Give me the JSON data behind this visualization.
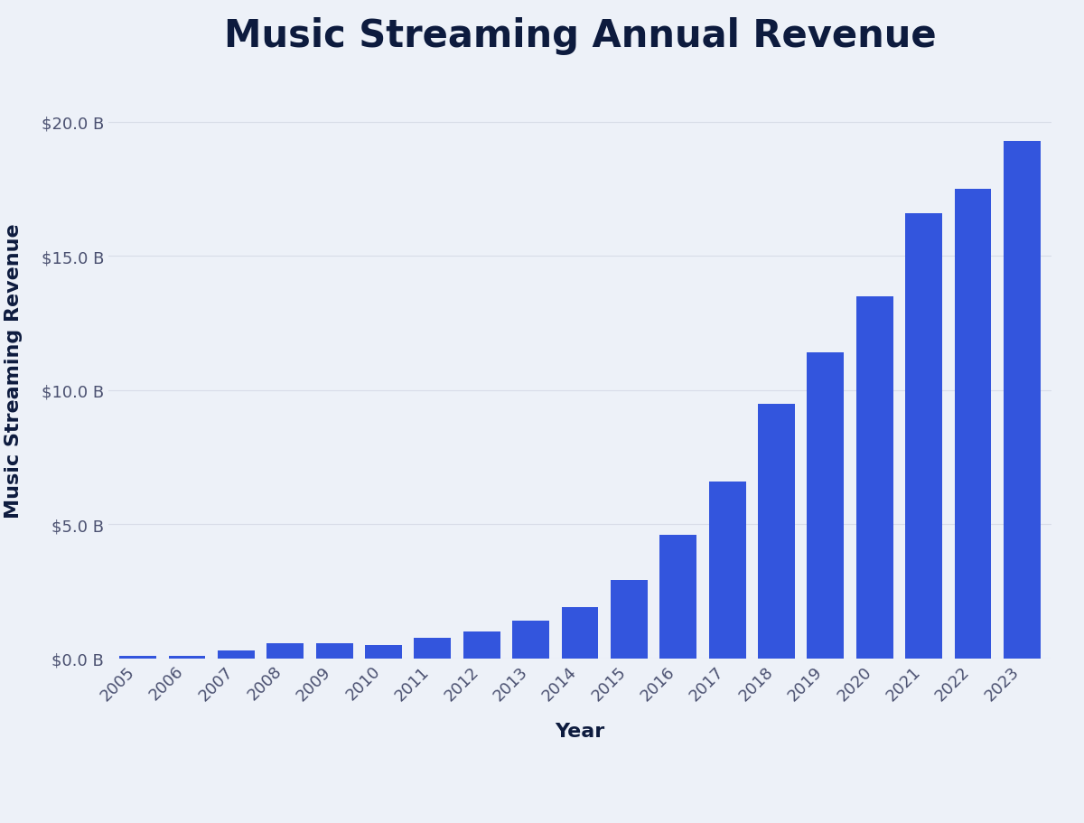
{
  "title": "Music Streaming Annual Revenue",
  "xlabel": "Year",
  "ylabel": "Music Streaming Revenue",
  "background_color": "#EDF1F8",
  "bar_color": "#3355DD",
  "title_color": "#0D1B3E",
  "axis_label_color": "#0D1B3E",
  "tick_label_color": "#4A5070",
  "grid_color": "#D8DDE8",
  "years": [
    2005,
    2006,
    2007,
    2008,
    2009,
    2010,
    2011,
    2012,
    2013,
    2014,
    2015,
    2016,
    2017,
    2018,
    2019,
    2020,
    2021,
    2022,
    2023
  ],
  "values": [
    0.08,
    0.1,
    0.3,
    0.55,
    0.55,
    0.5,
    0.75,
    1.0,
    1.4,
    1.9,
    2.9,
    4.6,
    6.6,
    9.5,
    11.4,
    13.5,
    16.6,
    17.5,
    19.3
  ],
  "yticks": [
    0,
    5,
    10,
    15,
    20
  ],
  "ytick_labels": [
    "$0.0 B",
    "$5.0 B",
    "$10.0 B",
    "$15.0 B",
    "$20.0 B"
  ],
  "ylim": [
    0,
    21.5
  ],
  "title_fontsize": 30,
  "axis_label_fontsize": 16,
  "tick_fontsize": 13,
  "bar_width": 0.75
}
